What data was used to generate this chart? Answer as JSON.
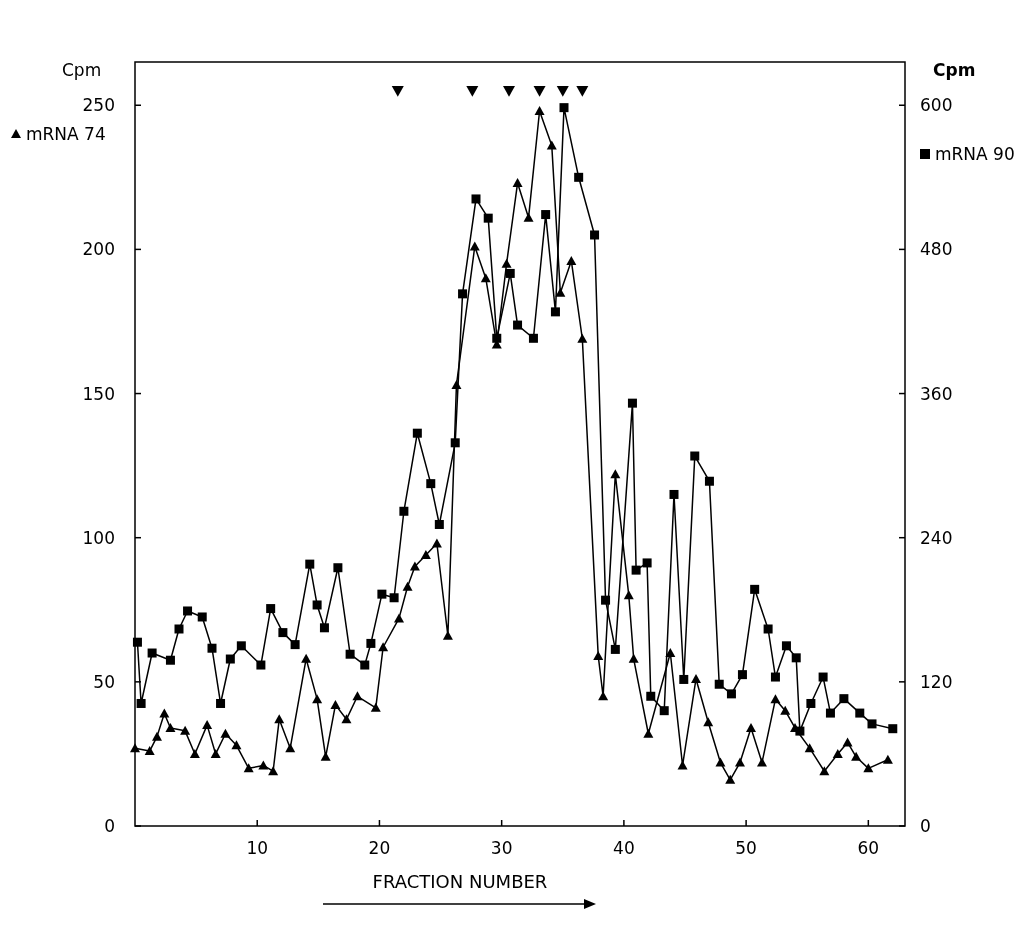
{
  "chart_data": {
    "type": "line",
    "xlabel": "FRACTION NUMBER",
    "ylabel": "Cpm",
    "y2label": "Cpm",
    "legend": "top",
    "xlim": [
      0,
      63
    ],
    "xticks": [
      10,
      20,
      30,
      40,
      50,
      60
    ],
    "ylim": [
      0,
      265
    ],
    "yticks": [
      0,
      50,
      100,
      150,
      200,
      250
    ],
    "y2lim": [
      0,
      636
    ],
    "y2ticks": [
      0,
      120,
      240,
      360,
      480,
      600
    ],
    "grid": false,
    "line_style": "solid",
    "series": [
      {
        "name": "mRNA 74",
        "color": "#000000",
        "marker": "triangle",
        "x": [
          0,
          1.2,
          1.8,
          2.4,
          2.9,
          4.1,
          4.9,
          5.9,
          6.6,
          7.4,
          8.3,
          9.3,
          10.5,
          11.3,
          11.8,
          12.7,
          14,
          14.9,
          15.6,
          16.4,
          17.3,
          18.2,
          19.7,
          20.3,
          21.6,
          22.3,
          22.9,
          23.8,
          24.7,
          25.6,
          26.3,
          27.8,
          28.7,
          29.6,
          30.4,
          31.3,
          32.2,
          33.1,
          34.1,
          34.8,
          35.7,
          36.6,
          37.9,
          38.3,
          39.3,
          40.4,
          40.8,
          42,
          43.8,
          44.8,
          45.9,
          46.9,
          47.9,
          48.7,
          49.5,
          50.4,
          51.3,
          52.4,
          53.2,
          54,
          55.2,
          56.4,
          57.5,
          58.3,
          59,
          60,
          61.6
        ],
        "values": [
          27,
          26,
          31,
          39,
          34,
          33,
          25,
          35,
          25,
          32,
          28,
          20,
          21,
          19,
          37,
          27,
          58,
          44,
          24,
          42,
          37,
          45,
          41,
          62,
          72,
          83,
          90,
          94,
          98,
          66,
          153,
          201,
          190,
          167,
          195,
          223,
          211,
          248,
          236,
          185,
          196,
          169,
          59,
          45,
          122,
          80,
          58,
          32,
          60,
          21,
          51,
          36,
          22,
          16,
          22,
          34,
          22,
          44,
          40,
          34,
          27,
          19,
          25,
          29,
          24,
          20,
          23
        ]
      },
      {
        "name": "mRNA 90",
        "color": "#000000",
        "marker": "square",
        "axis": "y2",
        "x": [
          0.2,
          0.5,
          1.4,
          2.9,
          3.6,
          4.3,
          5.5,
          6.3,
          7,
          7.8,
          8.7,
          10.3,
          11.1,
          12.1,
          13.1,
          14.3,
          14.9,
          15.5,
          16.6,
          17.6,
          18.8,
          19.3,
          20.2,
          21.2,
          22,
          23.1,
          24.2,
          24.9,
          26.2,
          26.8,
          27.9,
          28.9,
          29.6,
          30.7,
          31.3,
          32.6,
          33.6,
          34.4,
          35.1,
          36.3,
          37.6,
          38.5,
          39.3,
          40.7,
          41,
          41.9,
          42.2,
          43.3,
          44.1,
          44.9,
          45.8,
          47,
          47.8,
          48.8,
          49.7,
          50.7,
          51.8,
          52.4,
          53.3,
          54.1,
          54.4,
          55.3,
          56.3,
          56.9,
          58,
          59.3,
          60.3,
          62
        ],
        "values": [
          153,
          102,
          144,
          138,
          164,
          179,
          174,
          148,
          102,
          139,
          150,
          134,
          181,
          161,
          151,
          218,
          184,
          165,
          215,
          143,
          134,
          152,
          193,
          190,
          262,
          327,
          285,
          251,
          319,
          443,
          522,
          506,
          406,
          460,
          417,
          406,
          509,
          428,
          598,
          540,
          492,
          188,
          147,
          352,
          213,
          219,
          108,
          96,
          276,
          122,
          308,
          287,
          118,
          110,
          126,
          197,
          164,
          124,
          150,
          140,
          79,
          102,
          124,
          94,
          106,
          94,
          85,
          81
        ]
      },
      {
        "type": "scatter",
        "color": "#000000",
        "marker": "triangle-down",
        "x": [
          21.5,
          27.6,
          30.6,
          33.1,
          35,
          36.6
        ],
        "values": [
          255,
          255,
          255,
          255,
          255,
          255
        ]
      }
    ]
  }
}
